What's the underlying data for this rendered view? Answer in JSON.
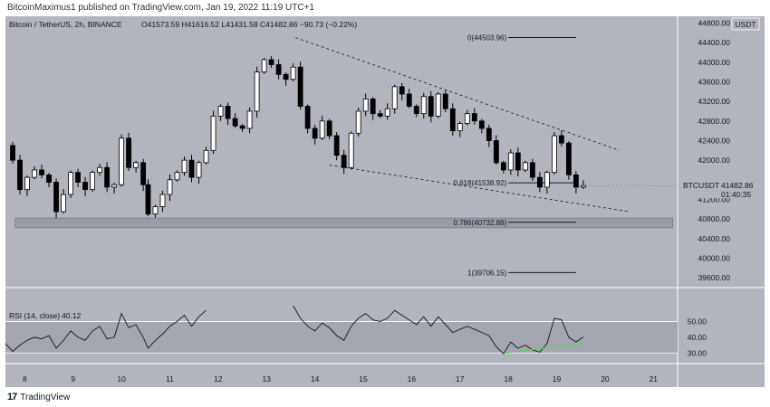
{
  "header": {
    "publish_line": "BitcoinMaximus1 published on TradingView.com, Jan 19, 2022 11:19 UTC+1"
  },
  "chart_header": {
    "symbol": "Bitcoin / TetherUS, 2h, BINANCE",
    "ohlc": "O41573.59  H41616.52  L41431.58  C41482.86  −90.73 (−0.22%)"
  },
  "price_axis": {
    "currency": "USDT",
    "ticks": [
      "44800.00",
      "44400.00",
      "44000.00",
      "43600.00",
      "43200.00",
      "42800.00",
      "42400.00",
      "42000.00",
      "41600.00",
      "41200.00",
      "40800.00",
      "40400.00",
      "40000.00",
      "39600.00"
    ]
  },
  "last_price": {
    "symbol": "BTCUSDT",
    "price": "41482.86",
    "countdown": "01:40:35"
  },
  "fib_labels": {
    "f0": "0(44503.96)",
    "f618": "0.618(41538.92)",
    "f786": "0.786(40732.88)",
    "f1": "1(39706.15)"
  },
  "rsi": {
    "legend": "RSI (14, close)",
    "value": "40.12",
    "ticks": [
      "50.00",
      "40.00",
      "30.00"
    ]
  },
  "time_axis": {
    "ticks": [
      "8",
      "9",
      "10",
      "11",
      "12",
      "13",
      "14",
      "15",
      "16",
      "17",
      "18",
      "19",
      "20",
      "21"
    ]
  },
  "footer": {
    "brand": "TradingView",
    "logo": "17"
  },
  "colors": {
    "bg": "#b2b5be",
    "candle_up": "#ffffff",
    "candle_down": "#000000",
    "rsi_div": "#5bd15b"
  },
  "chart_data": {
    "type": "candlestick",
    "interval": "2h",
    "ylim": [
      39400,
      44900
    ],
    "xlim": [
      7.6,
      21.5
    ],
    "fib": {
      "0": 44503.96,
      "0.618": 41538.92,
      "0.786": 40732.88,
      "1": 39706.15
    },
    "wedge": {
      "upper": [
        [
          13.6,
          44500
        ],
        [
          20.3,
          42200
        ]
      ],
      "lower": [
        [
          14.3,
          41900
        ],
        [
          20.5,
          40950
        ]
      ]
    },
    "support_zone": [
      40620,
      40820
    ],
    "closes": [
      [
        7.6,
        42300
      ],
      [
        7.75,
        42000
      ],
      [
        7.9,
        41400
      ],
      [
        8.05,
        41650
      ],
      [
        8.2,
        41800
      ],
      [
        8.35,
        41700
      ],
      [
        8.5,
        41550
      ],
      [
        8.65,
        40950
      ],
      [
        8.8,
        41300
      ],
      [
        8.95,
        41750
      ],
      [
        9.1,
        41550
      ],
      [
        9.25,
        41400
      ],
      [
        9.4,
        41750
      ],
      [
        9.55,
        41850
      ],
      [
        9.7,
        41450
      ],
      [
        9.85,
        41500
      ],
      [
        10.0,
        42450
      ],
      [
        10.15,
        41850
      ],
      [
        10.3,
        41950
      ],
      [
        10.45,
        41500
      ],
      [
        10.55,
        40900
      ],
      [
        10.7,
        41050
      ],
      [
        10.85,
        41300
      ],
      [
        11.0,
        41600
      ],
      [
        11.15,
        41750
      ],
      [
        11.3,
        42000
      ],
      [
        11.45,
        41650
      ],
      [
        11.6,
        41950
      ],
      [
        11.75,
        42200
      ],
      [
        11.9,
        42900
      ],
      [
        12.05,
        43100
      ],
      [
        12.2,
        42850
      ],
      [
        12.35,
        42700
      ],
      [
        12.5,
        42650
      ],
      [
        12.65,
        43000
      ],
      [
        12.8,
        43800
      ],
      [
        12.95,
        44050
      ],
      [
        13.1,
        43950
      ],
      [
        13.25,
        43750
      ],
      [
        13.4,
        43650
      ],
      [
        13.55,
        43900
      ],
      [
        13.7,
        43100
      ],
      [
        13.85,
        42650
      ],
      [
        14.0,
        42450
      ],
      [
        14.15,
        42800
      ],
      [
        14.3,
        42500
      ],
      [
        14.45,
        42100
      ],
      [
        14.6,
        41850
      ],
      [
        14.75,
        42550
      ],
      [
        14.9,
        43000
      ],
      [
        15.05,
        43250
      ],
      [
        15.2,
        42950
      ],
      [
        15.35,
        42900
      ],
      [
        15.5,
        43050
      ],
      [
        15.65,
        43500
      ],
      [
        15.8,
        43350
      ],
      [
        15.95,
        43100
      ],
      [
        16.1,
        42950
      ],
      [
        16.25,
        43300
      ],
      [
        16.4,
        42900
      ],
      [
        16.55,
        43350
      ],
      [
        16.7,
        43050
      ],
      [
        16.85,
        42600
      ],
      [
        17.0,
        42750
      ],
      [
        17.15,
        42950
      ],
      [
        17.3,
        42800
      ],
      [
        17.45,
        42650
      ],
      [
        17.6,
        42400
      ],
      [
        17.75,
        41950
      ],
      [
        17.9,
        41800
      ],
      [
        18.05,
        42150
      ],
      [
        18.2,
        41800
      ],
      [
        18.35,
        41950
      ],
      [
        18.5,
        41650
      ],
      [
        18.65,
        41450
      ],
      [
        18.8,
        41750
      ],
      [
        18.95,
        42500
      ],
      [
        19.1,
        42350
      ],
      [
        19.25,
        41700
      ],
      [
        19.4,
        41450
      ],
      [
        19.55,
        41483
      ]
    ],
    "rsi_values": [
      [
        7.6,
        36
      ],
      [
        7.75,
        31
      ],
      [
        7.9,
        35
      ],
      [
        8.05,
        38
      ],
      [
        8.2,
        40
      ],
      [
        8.35,
        39
      ],
      [
        8.5,
        41
      ],
      [
        8.65,
        33
      ],
      [
        8.8,
        38
      ],
      [
        8.95,
        44
      ],
      [
        9.1,
        40
      ],
      [
        9.25,
        38
      ],
      [
        9.4,
        44
      ],
      [
        9.55,
        47
      ],
      [
        9.7,
        39
      ],
      [
        9.85,
        40
      ],
      [
        10.0,
        55
      ],
      [
        10.15,
        46
      ],
      [
        10.3,
        48
      ],
      [
        10.45,
        40
      ],
      [
        10.55,
        33
      ],
      [
        10.7,
        38
      ],
      [
        10.85,
        42
      ],
      [
        11.0,
        47
      ],
      [
        11.15,
        50
      ],
      [
        11.3,
        54
      ],
      [
        11.45,
        47
      ],
      [
        11.6,
        53
      ],
      [
        11.75,
        57
      ],
      [
        13.55,
        60
      ],
      [
        13.7,
        52
      ],
      [
        13.85,
        47
      ],
      [
        14.0,
        44
      ],
      [
        14.15,
        49
      ],
      [
        14.3,
        46
      ],
      [
        14.45,
        41
      ],
      [
        14.6,
        38
      ],
      [
        14.75,
        47
      ],
      [
        14.9,
        52
      ],
      [
        15.05,
        55
      ],
      [
        15.2,
        51
      ],
      [
        15.35,
        50
      ],
      [
        15.5,
        52
      ],
      [
        15.65,
        57
      ],
      [
        15.8,
        54
      ],
      [
        15.95,
        51
      ],
      [
        16.1,
        48
      ],
      [
        16.25,
        53
      ],
      [
        16.4,
        47
      ],
      [
        16.55,
        53
      ],
      [
        16.7,
        48
      ],
      [
        16.85,
        43
      ],
      [
        17.0,
        45
      ],
      [
        17.15,
        47
      ],
      [
        17.3,
        45
      ],
      [
        17.45,
        43
      ],
      [
        17.6,
        41
      ],
      [
        17.75,
        34
      ],
      [
        17.9,
        29.5
      ],
      [
        18.05,
        37
      ],
      [
        18.2,
        33
      ],
      [
        18.35,
        35
      ],
      [
        18.5,
        32
      ],
      [
        18.65,
        30.5
      ],
      [
        18.8,
        36
      ],
      [
        18.95,
        52
      ],
      [
        19.1,
        51
      ],
      [
        19.25,
        40
      ],
      [
        19.4,
        37
      ],
      [
        19.55,
        40.12
      ]
    ],
    "rsi_divergence": [
      [
        17.95,
        30.2
      ],
      [
        19.55,
        36
      ]
    ]
  }
}
